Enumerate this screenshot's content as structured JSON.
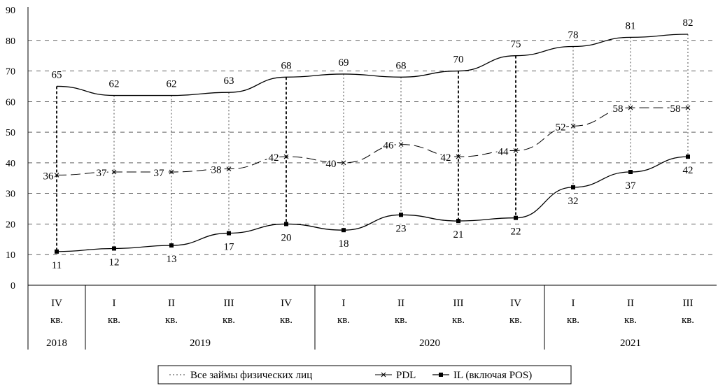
{
  "chart_data": {
    "type": "line",
    "categories": [
      {
        "quarter": "IV",
        "unit": "кв."
      },
      {
        "quarter": "I",
        "unit": "кв."
      },
      {
        "quarter": "II",
        "unit": "кв."
      },
      {
        "quarter": "III",
        "unit": "кв."
      },
      {
        "quarter": "IV",
        "unit": "кв."
      },
      {
        "quarter": "I",
        "unit": "кв."
      },
      {
        "quarter": "II",
        "unit": "кв."
      },
      {
        "quarter": "III",
        "unit": "кв."
      },
      {
        "quarter": "IV",
        "unit": "кв."
      },
      {
        "quarter": "I",
        "unit": "кв."
      },
      {
        "quarter": "II",
        "unit": "кв."
      },
      {
        "quarter": "III",
        "unit": "кв."
      }
    ],
    "years": [
      {
        "label": "2018",
        "start": 0,
        "end": 0
      },
      {
        "label": "2019",
        "start": 1,
        "end": 4
      },
      {
        "label": "2020",
        "start": 5,
        "end": 8
      },
      {
        "label": "2021",
        "start": 9,
        "end": 11
      }
    ],
    "series": [
      {
        "name": "Все займы физических лиц",
        "values": [
          65,
          62,
          62,
          63,
          68,
          69,
          68,
          70,
          75,
          78,
          81,
          82
        ],
        "marker": "none",
        "color": "#000000"
      },
      {
        "name": "PDL",
        "values": [
          36,
          37,
          37,
          38,
          42,
          40,
          46,
          42,
          44,
          52,
          58,
          58
        ],
        "marker": "x",
        "color": "#000000"
      },
      {
        "name": "IL (включая POS)",
        "values": [
          11,
          12,
          13,
          17,
          20,
          18,
          23,
          21,
          22,
          32,
          37,
          42
        ],
        "marker": "square",
        "color": "#000000"
      }
    ],
    "legend_display": [
      "Все займы физических лиц",
      "PDL",
      "IL (включая POS)"
    ],
    "yticks": [
      "0",
      "10",
      "20",
      "30",
      "40",
      "50",
      "60",
      "70",
      "80",
      "90"
    ],
    "ylim": [
      0,
      90
    ],
    "title": "",
    "xlabel": "",
    "ylabel": "",
    "grid": "dashed",
    "legend_position": "bottom"
  }
}
